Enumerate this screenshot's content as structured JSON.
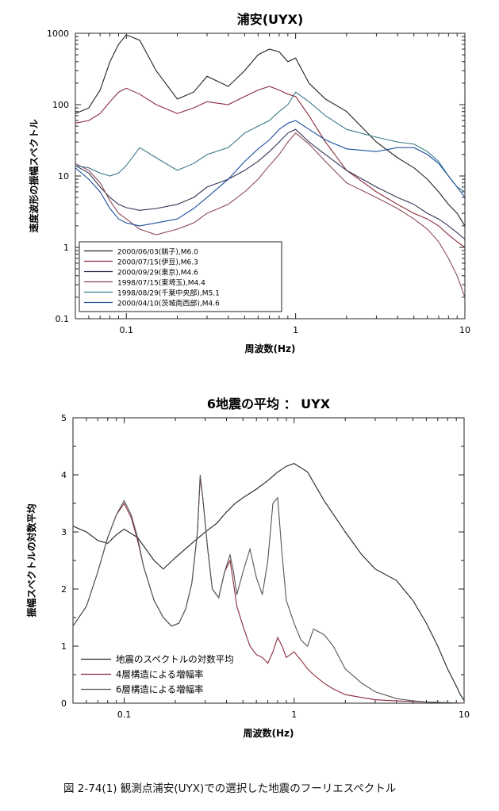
{
  "caption": "図 2-74(1) 観測点浦安(UYX)での選択した地震のフーリエスペクトル",
  "chart_data": [
    {
      "type": "line",
      "title": "浦安(UYX)",
      "xlabel": "周波数(Hz)",
      "ylabel": "速度波形の振幅スペクトル",
      "x_scale": "log",
      "y_scale": "log",
      "xlim": [
        0.05,
        10
      ],
      "ylim": [
        0.1,
        1000
      ],
      "x_ticks": [
        "0.1",
        "1",
        "10"
      ],
      "y_ticks": [
        "0.1",
        "1",
        "10",
        "100",
        "1000"
      ],
      "legend_position": "bottom-left",
      "series": [
        {
          "name": "2000/06/03(銚子),M6.0",
          "color": "#222222",
          "x": [
            0.05,
            0.06,
            0.07,
            0.08,
            0.09,
            0.1,
            0.12,
            0.15,
            0.2,
            0.25,
            0.3,
            0.4,
            0.5,
            0.6,
            0.7,
            0.8,
            0.9,
            1.0,
            1.2,
            1.5,
            2,
            3,
            4,
            5,
            6,
            7,
            8,
            9,
            10
          ],
          "y": [
            75,
            90,
            160,
            400,
            700,
            950,
            800,
            300,
            120,
            150,
            250,
            180,
            300,
            500,
            600,
            550,
            400,
            450,
            200,
            120,
            80,
            30,
            18,
            13,
            9,
            6,
            4,
            3,
            2
          ]
        },
        {
          "name": "2000/07/15(伊豆),M6.3",
          "color": "#8a2a3a",
          "x": [
            0.05,
            0.06,
            0.07,
            0.08,
            0.09,
            0.1,
            0.12,
            0.15,
            0.2,
            0.25,
            0.3,
            0.4,
            0.5,
            0.6,
            0.7,
            0.8,
            0.9,
            1.0,
            1.2,
            1.5,
            2,
            3,
            4,
            5,
            6,
            7,
            8,
            9,
            10
          ],
          "y": [
            55,
            60,
            75,
            110,
            150,
            170,
            140,
            100,
            75,
            90,
            110,
            100,
            130,
            160,
            180,
            160,
            140,
            130,
            70,
            30,
            12,
            6,
            4,
            3,
            2.5,
            2,
            1.5,
            1.2,
            1
          ]
        },
        {
          "name": "2000/09/29(東京),M4.6",
          "color": "#333355",
          "x": [
            0.05,
            0.06,
            0.07,
            0.08,
            0.09,
            0.1,
            0.12,
            0.15,
            0.2,
            0.25,
            0.3,
            0.4,
            0.5,
            0.6,
            0.7,
            0.8,
            0.9,
            1.0,
            1.2,
            1.5,
            2,
            3,
            4,
            5,
            6,
            7,
            8,
            9,
            10
          ],
          "y": [
            14,
            11,
            7,
            5,
            4,
            3.6,
            3.3,
            3.5,
            4,
            5,
            7,
            9,
            12,
            16,
            22,
            30,
            40,
            45,
            30,
            20,
            12,
            7,
            5,
            4,
            3,
            2.5,
            2,
            1.6,
            1.3
          ]
        },
        {
          "name": "1998/07/15(東埼玉),M4.4",
          "color": "#8a4a55",
          "x": [
            0.05,
            0.06,
            0.07,
            0.08,
            0.09,
            0.1,
            0.12,
            0.15,
            0.2,
            0.25,
            0.3,
            0.4,
            0.5,
            0.6,
            0.7,
            0.8,
            0.9,
            1.0,
            1.2,
            1.5,
            2,
            3,
            4,
            5,
            6,
            7,
            8,
            9,
            10
          ],
          "y": [
            15,
            12,
            8,
            4.5,
            3,
            2.5,
            1.8,
            1.5,
            1.8,
            2.2,
            3,
            4,
            6,
            9,
            14,
            20,
            30,
            40,
            28,
            16,
            8,
            5,
            3.5,
            2.5,
            1.8,
            1.2,
            0.7,
            0.4,
            0.2
          ]
        },
        {
          "name": "1998/08/29(千葉中央部),M5.1",
          "color": "#3a7a88",
          "x": [
            0.05,
            0.06,
            0.07,
            0.08,
            0.09,
            0.1,
            0.12,
            0.15,
            0.2,
            0.25,
            0.3,
            0.4,
            0.5,
            0.6,
            0.7,
            0.8,
            0.9,
            1.0,
            1.2,
            1.5,
            2,
            3,
            4,
            5,
            6,
            7,
            8,
            9,
            10
          ],
          "y": [
            14,
            13,
            11,
            10,
            11,
            14,
            25,
            18,
            12,
            15,
            20,
            25,
            40,
            50,
            60,
            80,
            100,
            150,
            110,
            70,
            45,
            35,
            30,
            28,
            22,
            16,
            10,
            7,
            6
          ]
        },
        {
          "name": "2000/04/10(茨城南西部),M4.6",
          "color": "#1d4f9e",
          "x": [
            0.05,
            0.06,
            0.07,
            0.08,
            0.09,
            0.1,
            0.12,
            0.15,
            0.2,
            0.25,
            0.3,
            0.4,
            0.5,
            0.6,
            0.7,
            0.8,
            0.9,
            1.0,
            1.2,
            1.5,
            2,
            3,
            4,
            5,
            6,
            7,
            8,
            9,
            10
          ],
          "y": [
            13,
            9,
            6,
            3.5,
            2.5,
            2.2,
            2,
            2.2,
            2.5,
            3.5,
            5,
            9,
            16,
            24,
            32,
            45,
            55,
            60,
            45,
            32,
            24,
            22,
            25,
            25,
            20,
            15,
            10,
            7,
            5
          ]
        }
      ]
    },
    {
      "type": "line",
      "title": "6地震の平均 ： UYX",
      "xlabel": "周波数(Hz)",
      "ylabel": "振幅スペクトルの対数平均",
      "x_scale": "log",
      "xlim": [
        0.05,
        10
      ],
      "ylim": [
        0,
        5
      ],
      "x_ticks": [
        "0.1",
        "1",
        "10"
      ],
      "y_ticks": [
        "0",
        "1",
        "2",
        "3",
        "4",
        "5"
      ],
      "legend_position": "bottom-left",
      "series": [
        {
          "name": "地震のスペクトルの対数平均",
          "color": "#222222",
          "x": [
            0.05,
            0.06,
            0.07,
            0.08,
            0.09,
            0.1,
            0.12,
            0.15,
            0.17,
            0.2,
            0.25,
            0.3,
            0.35,
            0.4,
            0.45,
            0.5,
            0.6,
            0.7,
            0.8,
            0.9,
            1.0,
            1.2,
            1.5,
            2,
            2.5,
            3,
            4,
            5,
            6,
            7,
            8,
            9,
            9.5,
            10
          ],
          "y": [
            3.1,
            3.0,
            2.85,
            2.8,
            2.95,
            3.05,
            2.9,
            2.5,
            2.35,
            2.55,
            2.8,
            3.0,
            3.15,
            3.35,
            3.5,
            3.6,
            3.75,
            3.9,
            4.05,
            4.15,
            4.2,
            4.05,
            3.55,
            3.0,
            2.6,
            2.35,
            2.15,
            1.8,
            1.4,
            1.0,
            0.6,
            0.3,
            0.15,
            0.05
          ]
        },
        {
          "name": "4層構造による増幅率",
          "color": "#8a2a3a",
          "x": [
            0.05,
            0.06,
            0.07,
            0.08,
            0.09,
            0.1,
            0.11,
            0.12,
            0.13,
            0.15,
            0.17,
            0.19,
            0.21,
            0.23,
            0.25,
            0.27,
            0.28,
            0.29,
            0.31,
            0.33,
            0.36,
            0.39,
            0.42,
            0.44,
            0.46,
            0.5,
            0.55,
            0.6,
            0.65,
            0.7,
            0.75,
            0.8,
            0.85,
            0.9,
            1.0,
            1.1,
            1.2,
            1.3,
            1.5,
            1.7,
            2,
            2.5,
            3,
            4,
            5,
            6,
            8,
            10
          ],
          "y": [
            1.35,
            1.7,
            2.3,
            2.9,
            3.3,
            3.5,
            3.25,
            2.85,
            2.4,
            1.8,
            1.5,
            1.35,
            1.4,
            1.65,
            2.1,
            3.0,
            3.95,
            3.6,
            2.7,
            2.0,
            1.85,
            2.3,
            2.5,
            2.1,
            1.7,
            1.35,
            1.0,
            0.85,
            0.8,
            0.7,
            0.9,
            1.15,
            1.0,
            0.8,
            0.9,
            0.75,
            0.6,
            0.5,
            0.35,
            0.25,
            0.15,
            0.1,
            0.06,
            0.04,
            0.03,
            0.02,
            0.01,
            0.0
          ]
        },
        {
          "name": "6層構造による増幅率",
          "color": "#555555",
          "x": [
            0.05,
            0.06,
            0.07,
            0.08,
            0.09,
            0.1,
            0.11,
            0.12,
            0.13,
            0.15,
            0.17,
            0.19,
            0.21,
            0.23,
            0.25,
            0.27,
            0.28,
            0.29,
            0.31,
            0.33,
            0.36,
            0.39,
            0.42,
            0.44,
            0.46,
            0.5,
            0.55,
            0.6,
            0.65,
            0.7,
            0.75,
            0.8,
            0.85,
            0.9,
            1.0,
            1.1,
            1.2,
            1.3,
            1.5,
            1.7,
            2,
            2.5,
            3,
            4,
            5,
            6,
            8,
            10
          ],
          "y": [
            1.35,
            1.7,
            2.3,
            2.9,
            3.3,
            3.55,
            3.3,
            2.9,
            2.4,
            1.8,
            1.5,
            1.35,
            1.4,
            1.65,
            2.1,
            3.0,
            4.0,
            3.6,
            2.7,
            2.0,
            1.85,
            2.3,
            2.6,
            2.3,
            1.9,
            2.3,
            2.7,
            2.2,
            1.9,
            2.5,
            3.5,
            3.6,
            2.6,
            1.8,
            1.4,
            1.1,
            1.0,
            1.3,
            1.2,
            1.0,
            0.6,
            0.35,
            0.2,
            0.08,
            0.04,
            0.02,
            0.01,
            0.0
          ]
        }
      ]
    }
  ]
}
